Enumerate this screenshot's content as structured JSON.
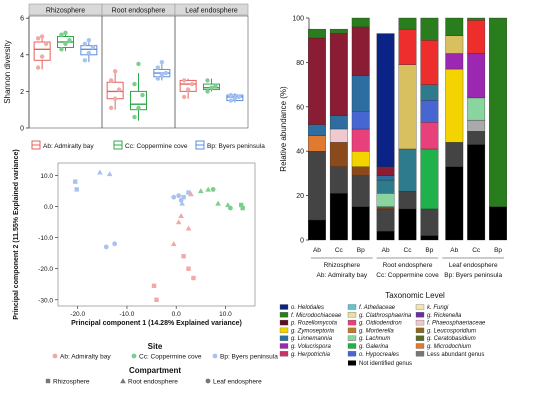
{
  "colors": {
    "ab": "#e8605c",
    "cc": "#2fa84a",
    "bp": "#5b8ee0",
    "ab_light": "#f2a9a5",
    "cc_light": "#7ccf8a",
    "bp_light": "#a8c3ef"
  },
  "chart_data": [
    {
      "type": "box",
      "ylabel": "Shannon diversity",
      "ylim": [
        0,
        6
      ],
      "yticks": [
        "0",
        "2",
        "4",
        "6"
      ],
      "facets": [
        "Rhizosphere",
        "Root endosphere",
        "Leaf endosphere"
      ],
      "legend": [
        {
          "code": "ab",
          "label": "Ab: Admiralty bay"
        },
        {
          "code": "cc",
          "label": "Cc: Coppermine cove"
        },
        {
          "code": "bp",
          "label": "Bp: Byers peninsula"
        }
      ],
      "boxes": [
        {
          "facet": 0,
          "site": "ab",
          "q1": 3.7,
          "median": 4.3,
          "q3": 4.7,
          "min": 3.2,
          "max": 5.1,
          "points": [
            3.3,
            3.9,
            4.6,
            4.9,
            5.0
          ]
        },
        {
          "facet": 0,
          "site": "cc",
          "q1": 4.4,
          "median": 4.7,
          "q3": 5.0,
          "min": 4.2,
          "max": 5.2,
          "points": [
            4.3,
            4.6,
            4.8,
            5.1,
            5.2
          ]
        },
        {
          "facet": 0,
          "site": "bp",
          "q1": 4.0,
          "median": 4.3,
          "q3": 4.5,
          "min": 3.6,
          "max": 4.8,
          "points": [
            3.7,
            4.1,
            4.4,
            4.6,
            4.8
          ]
        },
        {
          "facet": 1,
          "site": "ab",
          "q1": 1.6,
          "median": 2.0,
          "q3": 2.5,
          "min": 1.0,
          "max": 3.2,
          "points": [
            1.1,
            1.6,
            2.1,
            2.6,
            3.1
          ]
        },
        {
          "facet": 1,
          "site": "cc",
          "q1": 1.0,
          "median": 1.3,
          "q3": 2.0,
          "min": 0.4,
          "max": 3.0,
          "points": [
            0.6,
            1.1,
            1.8,
            2.4,
            3.5
          ]
        },
        {
          "facet": 1,
          "site": "bp",
          "q1": 2.8,
          "median": 3.0,
          "q3": 3.2,
          "min": 2.6,
          "max": 3.6,
          "points": [
            2.7,
            2.9,
            3.0,
            3.3,
            3.6
          ]
        },
        {
          "facet": 2,
          "site": "ab",
          "q1": 2.0,
          "median": 2.4,
          "q3": 2.6,
          "min": 1.6,
          "max": 2.7,
          "points": [
            1.7,
            2.1,
            2.4,
            2.6
          ]
        },
        {
          "facet": 2,
          "site": "cc",
          "q1": 2.1,
          "median": 2.2,
          "q3": 2.4,
          "min": 2.0,
          "max": 2.7,
          "points": [
            2.0,
            2.2,
            2.3,
            2.6
          ]
        },
        {
          "facet": 2,
          "site": "bp",
          "q1": 1.5,
          "median": 1.7,
          "q3": 1.8,
          "min": 1.4,
          "max": 1.9,
          "points": [
            1.5,
            1.6,
            1.7,
            1.8
          ]
        }
      ]
    },
    {
      "type": "scatter",
      "xlabel": "Principal component 1 (14.28% Explained variance)",
      "ylabel": "Principal component 2 (11.55% Explained variance)",
      "xlim": [
        -24,
        16
      ],
      "ylim": [
        -32,
        14
      ],
      "xticks": [
        -20,
        -10,
        0,
        10
      ],
      "xtick_labels": [
        "-20.0",
        "-10.0",
        "0.0",
        "10.0"
      ],
      "yticks": [
        -30,
        -20,
        -10,
        0,
        10
      ],
      "ytick_labels": [
        "-30.0",
        "-20.0",
        "-10.0",
        "0.0",
        "10.0"
      ],
      "site_title": "Site",
      "site_legend": [
        {
          "code": "ab",
          "label": "Ab: Admiralty bay"
        },
        {
          "code": "cc",
          "label": "Cc: Coppermine cove"
        },
        {
          "code": "bp",
          "label": "Bp: Byers peninsula"
        }
      ],
      "compartment_title": "Compartment",
      "compartment_legend": [
        {
          "shape": "square",
          "label": "Rhizosphere"
        },
        {
          "shape": "triangle",
          "label": "Root endosphere"
        },
        {
          "shape": "circle",
          "label": "Leaf endosphere"
        }
      ],
      "points": [
        {
          "x": -20.5,
          "y": 8,
          "site": "bp",
          "shape": "square"
        },
        {
          "x": -20.2,
          "y": 5.5,
          "site": "bp",
          "shape": "square"
        },
        {
          "x": -15.5,
          "y": 11,
          "site": "bp",
          "shape": "triangle"
        },
        {
          "x": -13.5,
          "y": 10.5,
          "site": "bp",
          "shape": "triangle"
        },
        {
          "x": -14.2,
          "y": -13,
          "site": "bp",
          "shape": "circle"
        },
        {
          "x": -12.5,
          "y": -12,
          "site": "bp",
          "shape": "circle"
        },
        {
          "x": -0.5,
          "y": 3,
          "site": "bp",
          "shape": "circle"
        },
        {
          "x": 0.5,
          "y": 3.5,
          "site": "bp",
          "shape": "circle"
        },
        {
          "x": 1,
          "y": 2,
          "site": "bp",
          "shape": "circle"
        },
        {
          "x": 1.5,
          "y": 3,
          "site": "bp",
          "shape": "square"
        },
        {
          "x": 2.5,
          "y": 4.5,
          "site": "bp",
          "shape": "square"
        },
        {
          "x": 1.2,
          "y": 1,
          "site": "bp",
          "shape": "triangle"
        },
        {
          "x": 3,
          "y": 4,
          "site": "ab",
          "shape": "triangle"
        },
        {
          "x": 1,
          "y": -3,
          "site": "ab",
          "shape": "triangle"
        },
        {
          "x": 0.5,
          "y": -5,
          "site": "ab",
          "shape": "triangle"
        },
        {
          "x": 2.5,
          "y": -7,
          "site": "ab",
          "shape": "triangle"
        },
        {
          "x": -0.5,
          "y": -12,
          "site": "ab",
          "shape": "triangle"
        },
        {
          "x": 1.5,
          "y": -16,
          "site": "ab",
          "shape": "square"
        },
        {
          "x": 2.5,
          "y": -20,
          "site": "ab",
          "shape": "square"
        },
        {
          "x": 3.5,
          "y": -23,
          "site": "ab",
          "shape": "square"
        },
        {
          "x": -4.5,
          "y": -25.5,
          "site": "ab",
          "shape": "square"
        },
        {
          "x": -4,
          "y": -30,
          "site": "ab",
          "shape": "square"
        },
        {
          "x": 5,
          "y": 5,
          "site": "cc",
          "shape": "triangle"
        },
        {
          "x": 6.5,
          "y": 5.5,
          "site": "cc",
          "shape": "triangle"
        },
        {
          "x": 7.5,
          "y": 5.5,
          "site": "cc",
          "shape": "circle"
        },
        {
          "x": 8.5,
          "y": 1,
          "site": "cc",
          "shape": "triangle"
        },
        {
          "x": 10.5,
          "y": 0.5,
          "site": "cc",
          "shape": "triangle"
        },
        {
          "x": 11,
          "y": -0.5,
          "site": "cc",
          "shape": "circle"
        },
        {
          "x": 13.5,
          "y": -0.5,
          "site": "cc",
          "shape": "square"
        },
        {
          "x": 13.2,
          "y": 0.5,
          "site": "cc",
          "shape": "square"
        }
      ]
    },
    {
      "type": "stacked_bar",
      "ylabel": "Relative abundance (%)",
      "ylim": [
        0,
        100
      ],
      "yticks": [
        "0",
        "20",
        "40",
        "60",
        "80",
        "100"
      ],
      "categories": [
        "Ab",
        "Cc",
        "Bp",
        "Ab",
        "Cc",
        "Bp",
        "Ab",
        "Cc",
        "Bp"
      ],
      "groups": [
        {
          "label": "Rhizosphere",
          "sub": "Ab: Admiralty bay"
        },
        {
          "label": "Root endosphere",
          "sub": "Cc: Coppermine cove"
        },
        {
          "label": "Leaf endosphere",
          "sub": "Bp: Byers peninsula"
        }
      ],
      "segment_colors": [
        "#000000",
        "#444444",
        "#777777",
        "#aaaaaa",
        "#e07a30",
        "#8b4a1d",
        "#f0c9ce",
        "#f4d400",
        "#8ad4a0",
        "#20b24a",
        "#e7407a",
        "#9c27b0",
        "#4866d1",
        "#2d7b8c",
        "#2e6da0",
        "#8a1c33",
        "#0b2287",
        "#d8c060",
        "#ee2d2d",
        "#2a7d1c"
      ],
      "bars": [
        [
          9,
          31,
          0,
          0,
          7,
          0,
          0,
          0,
          0,
          0,
          0,
          0,
          0,
          0,
          5,
          39,
          0,
          0,
          0,
          4
        ],
        [
          21,
          12,
          0,
          0,
          0,
          11,
          6,
          0,
          0,
          0,
          0,
          0,
          0,
          0,
          6,
          37,
          0,
          0,
          0,
          2
        ],
        [
          15,
          14,
          0,
          0,
          0,
          4,
          0,
          7,
          0,
          0,
          10,
          0,
          8,
          0,
          16,
          22,
          0,
          0,
          0,
          4
        ],
        [
          4,
          10,
          0,
          0,
          0,
          1,
          0,
          0,
          6,
          0,
          0,
          0,
          0,
          6,
          2,
          4,
          60,
          0,
          0,
          0
        ],
        [
          14,
          8,
          0,
          0,
          0,
          0,
          0,
          0,
          0,
          0,
          0,
          0,
          0,
          19,
          0,
          0,
          0,
          38,
          16,
          5
        ],
        [
          2,
          12,
          0,
          0,
          0,
          0,
          0,
          0,
          0,
          27,
          12,
          0,
          10,
          7,
          0,
          0,
          0,
          0,
          20,
          10
        ],
        [
          33,
          11,
          0,
          0,
          0,
          0,
          0,
          33,
          0,
          0,
          0,
          7,
          0,
          0,
          0,
          0,
          0,
          8,
          0,
          8
        ],
        [
          43,
          6,
          0,
          5,
          0,
          0,
          0,
          0,
          10,
          0,
          0,
          20,
          0,
          0,
          0,
          0,
          0,
          0,
          15,
          1
        ],
        [
          15,
          0,
          0,
          0,
          0,
          0,
          0,
          0,
          0,
          0,
          0,
          0,
          0,
          0,
          0,
          0,
          0,
          0,
          0,
          85
        ]
      ]
    }
  ],
  "taxonomy_title": "Taxonomic Level",
  "taxonomy_legend": [
    {
      "label": "o. Helotiales",
      "color": "#0b2287"
    },
    {
      "label": "f. Microdochiaceae",
      "color": "#2a7d1c"
    },
    {
      "label": "p. Rozellomycota",
      "color": "#5a1020"
    },
    {
      "label": "g. Zymoseptoria",
      "color": "#f4d400"
    },
    {
      "label": "g. Linnemannia",
      "color": "#2e6da0"
    },
    {
      "label": "g. Volucrispora",
      "color": "#9c27b0"
    },
    {
      "label": "g. Herpotrichia",
      "color": "#d12f6a"
    },
    {
      "label": "f. Atheliaceae",
      "color": "#5fc4d0"
    },
    {
      "label": "g. Clathrosphaerina",
      "color": "#e8dfa0"
    },
    {
      "label": "g. Oidiodendron",
      "color": "#e7407a"
    },
    {
      "label": "g. Mortierella",
      "color": "#c07a2a"
    },
    {
      "label": "g. Lachnum",
      "color": "#8ad4a0"
    },
    {
      "label": "g. Galerina",
      "color": "#20b24a"
    },
    {
      "label": "o. Hypocreales",
      "color": "#4866d1"
    },
    {
      "label": "k. Fungi",
      "color": "#f4e4b0"
    },
    {
      "label": "g. Rickenella",
      "color": "#6b2fa0"
    },
    {
      "label": "f. Phaeosphaeriaceae",
      "color": "#f0c9ce"
    },
    {
      "label": "g. Leucosporidium",
      "color": "#8b6a1d"
    },
    {
      "label": "g. Ceratobasidium",
      "color": "#5a6a2a"
    },
    {
      "label": "g. Microdochium",
      "color": "#e07a30"
    },
    {
      "label": "Less abundant genus",
      "color": "#777777"
    }
  ],
  "not_identified": {
    "label": "Not identified genus",
    "color": "#000000"
  }
}
